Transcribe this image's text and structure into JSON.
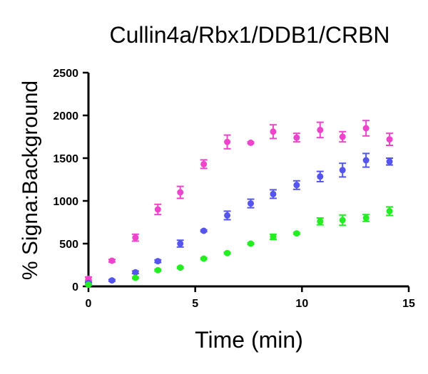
{
  "chart_data": {
    "type": "scatter",
    "title": "Cullin4a/Rbx1/DDB1/CRBN",
    "xlabel": "Time (min)",
    "ylabel": "% Signa:Background",
    "xlim": [
      0,
      15
    ],
    "ylim": [
      0,
      2500
    ],
    "xticks": [
      0,
      5,
      10,
      15
    ],
    "yticks": [
      0,
      500,
      1000,
      1500,
      2000,
      2500
    ],
    "grid": false,
    "legend": "none",
    "series": [
      {
        "color": "#ee44cc",
        "x": [
          0,
          1.1,
          2.2,
          3.25,
          4.3,
          5.4,
          6.5,
          7.6,
          8.65,
          9.75,
          10.85,
          11.9,
          13.0,
          14.1
        ],
        "y": [
          90,
          300,
          570,
          900,
          1100,
          1430,
          1690,
          1680,
          1810,
          1740,
          1830,
          1750,
          1850,
          1720
        ],
        "err": [
          20,
          15,
          40,
          60,
          70,
          50,
          80,
          10,
          80,
          50,
          90,
          60,
          90,
          70
        ]
      },
      {
        "color": "#5555ee",
        "x": [
          0,
          1.1,
          2.2,
          3.25,
          4.3,
          5.4,
          6.5,
          7.6,
          8.65,
          9.75,
          10.85,
          11.9,
          13.0,
          14.1
        ],
        "y": [
          40,
          70,
          165,
          295,
          500,
          650,
          830,
          970,
          1080,
          1185,
          1285,
          1360,
          1475,
          1460
        ],
        "err": [
          10,
          10,
          15,
          15,
          40,
          10,
          50,
          50,
          50,
          50,
          60,
          80,
          80,
          40
        ]
      },
      {
        "color": "#22ee22",
        "x": [
          0,
          2.2,
          3.25,
          4.3,
          5.4,
          6.5,
          7.6,
          8.65,
          9.75,
          10.85,
          11.9,
          13.0,
          14.1
        ],
        "y": [
          20,
          100,
          190,
          220,
          325,
          390,
          500,
          580,
          620,
          760,
          775,
          800,
          880
        ],
        "err": [
          5,
          10,
          10,
          10,
          10,
          10,
          10,
          30,
          10,
          40,
          60,
          40,
          50
        ]
      }
    ]
  }
}
